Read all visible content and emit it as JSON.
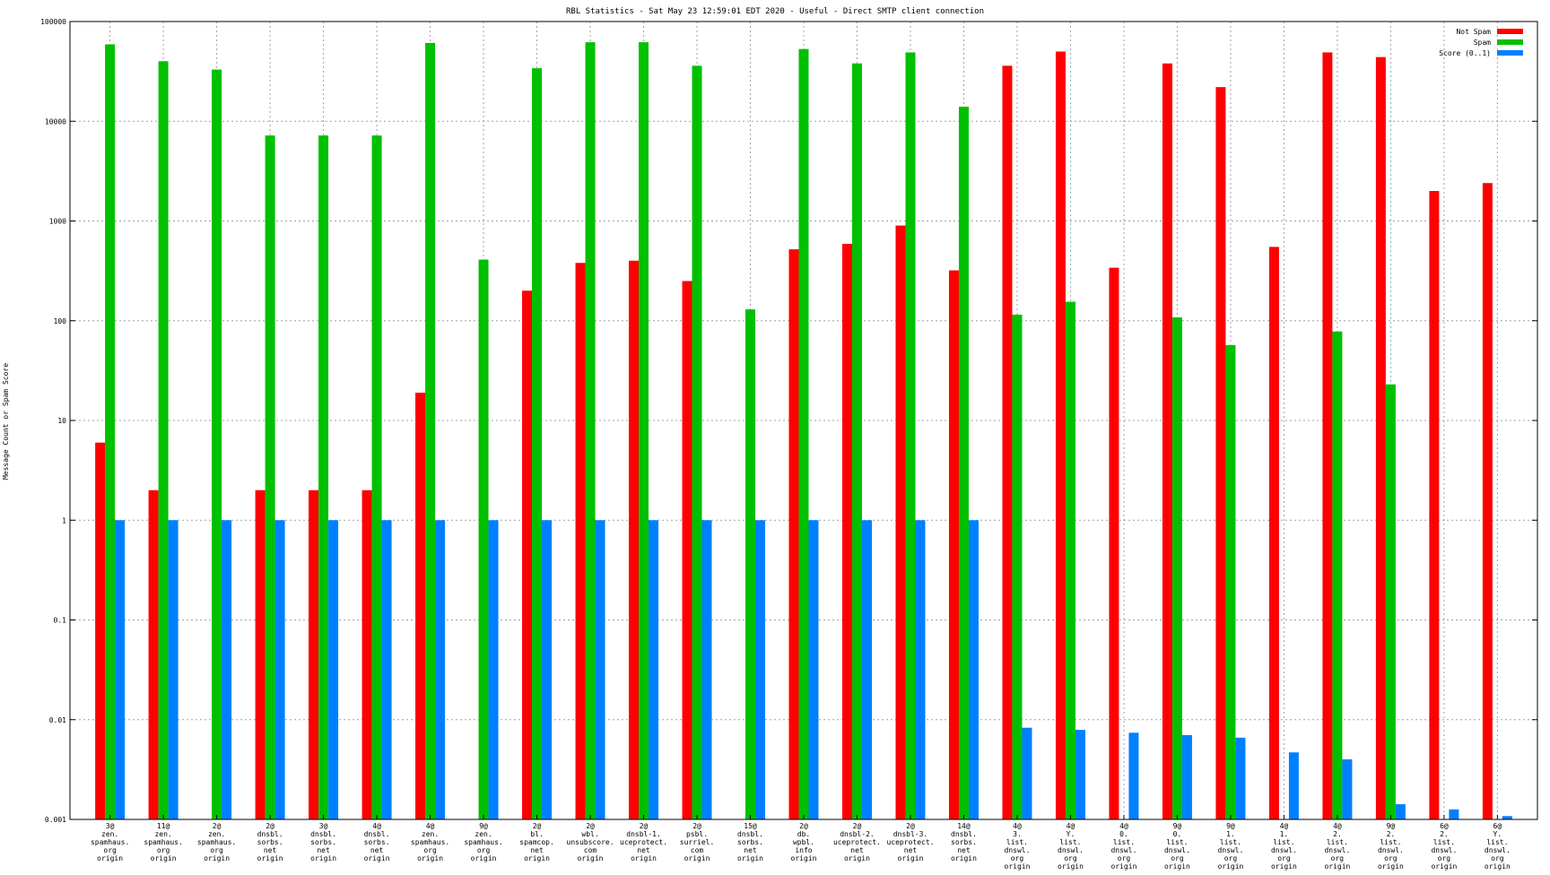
{
  "chart_data": {
    "type": "bar",
    "title": "RBL Statistics - Sat May 23 12:59:01 EDT 2020 - Useful - Direct SMTP client connection",
    "ylabel": "Message Count or Spam Score",
    "xlabel": "",
    "yscale": "log",
    "ylim": [
      0.001,
      100000
    ],
    "yticks": [
      "0.001",
      "0.01",
      "0.1",
      "1",
      "10",
      "100",
      "1000",
      "10000",
      "100000"
    ],
    "grid": true,
    "legend_position": "top-right",
    "categories": [
      [
        "3@",
        "zen.",
        "spamhaus.",
        "org",
        "origin"
      ],
      [
        "11@",
        "zen.",
        "spamhaus.",
        "org",
        "origin"
      ],
      [
        "2@",
        "zen.",
        "spamhaus.",
        "org",
        "origin"
      ],
      [
        "2@",
        "dnsbl.",
        "sorbs.",
        "net",
        "origin"
      ],
      [
        "3@",
        "dnsbl.",
        "sorbs.",
        "net",
        "origin"
      ],
      [
        "4@",
        "dnsbl.",
        "sorbs.",
        "net",
        "origin"
      ],
      [
        "4@",
        "zen.",
        "spamhaus.",
        "org",
        "origin"
      ],
      [
        "9@",
        "zen.",
        "spamhaus.",
        "org",
        "origin"
      ],
      [
        "2@",
        "bl.",
        "spamcop.",
        "net",
        "origin"
      ],
      [
        "2@",
        "wbl.",
        "unsubscore.",
        "com",
        "origin"
      ],
      [
        "2@",
        "dnsbl-1.",
        "uceprotect.",
        "net",
        "origin"
      ],
      [
        "2@",
        "psbl.",
        "surriel.",
        "com",
        "origin"
      ],
      [
        "15@",
        "dnsbl.",
        "sorbs.",
        "net",
        "origin"
      ],
      [
        "2@",
        "db.",
        "wpbl.",
        "info",
        "origin"
      ],
      [
        "2@",
        "dnsbl-2.",
        "uceprotect.",
        "net",
        "origin"
      ],
      [
        "2@",
        "dnsbl-3.",
        "uceprotect.",
        "net",
        "origin"
      ],
      [
        "14@",
        "dnsbl.",
        "sorbs.",
        "net",
        "origin"
      ],
      [
        "4@",
        "3.",
        "list.",
        "dnswl.",
        "org",
        "origin"
      ],
      [
        "4@",
        "Y.",
        "list.",
        "dnswl.",
        "org",
        "origin"
      ],
      [
        "4@",
        "0.",
        "list.",
        "dnswl.",
        "org",
        "origin"
      ],
      [
        "9@",
        "0.",
        "list.",
        "dnswl.",
        "org",
        "origin"
      ],
      [
        "9@",
        "1.",
        "list.",
        "dnswl.",
        "org",
        "origin"
      ],
      [
        "4@",
        "1.",
        "list.",
        "dnswl.",
        "org",
        "origin"
      ],
      [
        "4@",
        "2.",
        "list.",
        "dnswl.",
        "org",
        "origin"
      ],
      [
        "9@",
        "2.",
        "list.",
        "dnswl.",
        "org",
        "origin"
      ],
      [
        "6@",
        "2.",
        "list.",
        "dnswl.",
        "org",
        "origin"
      ],
      [
        "6@",
        "Y.",
        "list.",
        "dnswl.",
        "org",
        "origin"
      ]
    ],
    "series": [
      {
        "name": "Not Spam",
        "color": "#ff0000",
        "values": [
          6,
          2,
          null,
          2,
          2,
          2,
          19,
          null,
          200,
          380,
          400,
          250,
          null,
          520,
          590,
          900,
          320,
          36000,
          50000,
          340,
          38000,
          22000,
          550,
          49000,
          44000,
          2000,
          2400
        ]
      },
      {
        "name": "Spam",
        "color": "#00c000",
        "values": [
          59000,
          40000,
          33000,
          7200,
          7200,
          7200,
          61000,
          410,
          34000,
          62000,
          62000,
          36000,
          130,
          53000,
          38000,
          49000,
          14000,
          115,
          155,
          null,
          108,
          57,
          null,
          78,
          23,
          null,
          null
        ]
      },
      {
        "name": "Score (0..1)",
        "color": "#0080ff",
        "values": [
          1,
          1,
          1,
          1,
          1,
          1,
          1,
          1,
          1,
          1,
          1,
          1,
          1,
          1,
          1,
          1,
          1,
          0.0083,
          0.0079,
          0.0074,
          0.007,
          0.0066,
          0.0047,
          0.004,
          0.00142,
          0.00126,
          0.00108
        ]
      }
    ]
  }
}
